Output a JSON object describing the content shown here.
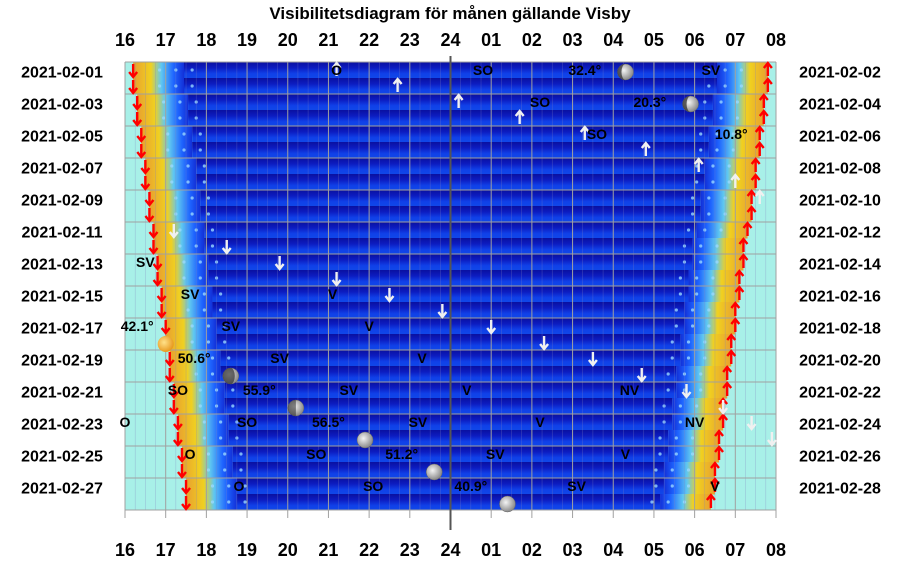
{
  "chart_data": {
    "type": "heatmap",
    "title": "Visibilitetsdiagram för månen gällande Visby",
    "x_hour_labels": [
      "16",
      "17",
      "18",
      "19",
      "20",
      "21",
      "22",
      "23",
      "24",
      "01",
      "02",
      "03",
      "04",
      "05",
      "06",
      "07",
      "08"
    ],
    "left_dates": [
      "2021-02-01",
      "2021-02-03",
      "2021-02-05",
      "2021-02-07",
      "2021-02-09",
      "2021-02-11",
      "2021-02-13",
      "2021-02-15",
      "2021-02-17",
      "2021-02-19",
      "2021-02-21",
      "2021-02-23",
      "2021-02-25",
      "2021-02-27"
    ],
    "right_dates": [
      "2021-02-02",
      "2021-02-04",
      "2021-02-06",
      "2021-02-08",
      "2021-02-10",
      "2021-02-12",
      "2021-02-14",
      "2021-02-16",
      "2021-02-18",
      "2021-02-20",
      "2021-02-22",
      "2021-02-24",
      "2021-02-26",
      "2021-02-28"
    ],
    "sunset_by_day": [
      16.2,
      16.2,
      16.3,
      16.3,
      16.4,
      16.4,
      16.5,
      16.5,
      16.6,
      16.6,
      16.7,
      16.7,
      16.8,
      16.8,
      16.9,
      16.9,
      17.0,
      17.0,
      17.1,
      17.1,
      17.2,
      17.2,
      17.3,
      17.3,
      17.4,
      17.4,
      17.5,
      17.5
    ],
    "sunrise_by_day": [
      31.8,
      31.8,
      31.7,
      31.7,
      31.6,
      31.6,
      31.5,
      31.5,
      31.4,
      31.4,
      31.3,
      31.2,
      31.2,
      31.1,
      31.1,
      31.0,
      31.0,
      30.9,
      30.9,
      30.8,
      30.8,
      30.7,
      30.7,
      30.6,
      30.6,
      30.5,
      30.5,
      30.4
    ],
    "moon_icons": [
      {
        "day": 1,
        "hour": 28.3,
        "phase": "waning gibbous"
      },
      {
        "day": 3,
        "hour": 29.9,
        "phase": "waning gibbous"
      },
      {
        "day": 18,
        "hour": 17.0,
        "phase": "waxing crescent"
      },
      {
        "day": 20,
        "hour": 18.6,
        "phase": "waxing crescent"
      },
      {
        "day": 22,
        "hour": 20.2,
        "phase": "first quarter"
      },
      {
        "day": 24,
        "hour": 21.9,
        "phase": "waxing gibbous"
      },
      {
        "day": 26,
        "hour": 23.6,
        "phase": "waxing gibbous"
      },
      {
        "day": 28,
        "hour": 25.4,
        "phase": "full"
      }
    ],
    "annotations": [
      {
        "day": 1,
        "hour": 21.2,
        "text": "O"
      },
      {
        "day": 1,
        "hour": 24.8,
        "text": "SO"
      },
      {
        "day": 1,
        "hour": 27.3,
        "text": "32.4°"
      },
      {
        "day": 1,
        "hour": 30.4,
        "text": "SV"
      },
      {
        "day": 3,
        "hour": 26.2,
        "text": "SO"
      },
      {
        "day": 3,
        "hour": 28.9,
        "text": "20.3°"
      },
      {
        "day": 5,
        "hour": 27.6,
        "text": "SO"
      },
      {
        "day": 5,
        "hour": 30.9,
        "text": "10.8°"
      },
      {
        "day": 13,
        "hour": 16.5,
        "text": "SV"
      },
      {
        "day": 15,
        "hour": 17.6,
        "text": "SV"
      },
      {
        "day": 15,
        "hour": 21.1,
        "text": "V"
      },
      {
        "day": 17,
        "hour": 16.3,
        "text": "42.1°"
      },
      {
        "day": 17,
        "hour": 18.6,
        "text": "SV"
      },
      {
        "day": 17,
        "hour": 22.0,
        "text": "V"
      },
      {
        "day": 19,
        "hour": 17.7,
        "text": "50.6°"
      },
      {
        "day": 19,
        "hour": 19.8,
        "text": "SV"
      },
      {
        "day": 19,
        "hour": 23.3,
        "text": "V"
      },
      {
        "day": 21,
        "hour": 17.3,
        "text": "SO"
      },
      {
        "day": 21,
        "hour": 19.3,
        "text": "55.9°"
      },
      {
        "day": 21,
        "hour": 21.5,
        "text": "SV"
      },
      {
        "day": 21,
        "hour": 24.4,
        "text": "V"
      },
      {
        "day": 21,
        "hour": 28.4,
        "text": "NV"
      },
      {
        "day": 23,
        "hour": 16.0,
        "text": "O"
      },
      {
        "day": 23,
        "hour": 19.0,
        "text": "SO"
      },
      {
        "day": 23,
        "hour": 21.0,
        "text": "56.5°"
      },
      {
        "day": 23,
        "hour": 23.2,
        "text": "SV"
      },
      {
        "day": 23,
        "hour": 26.2,
        "text": "V"
      },
      {
        "day": 23,
        "hour": 30.0,
        "text": "NV"
      },
      {
        "day": 25,
        "hour": 17.6,
        "text": "O"
      },
      {
        "day": 25,
        "hour": 20.7,
        "text": "SO"
      },
      {
        "day": 25,
        "hour": 22.8,
        "text": "51.2°"
      },
      {
        "day": 25,
        "hour": 25.1,
        "text": "SV"
      },
      {
        "day": 25,
        "hour": 28.3,
        "text": "V"
      },
      {
        "day": 27,
        "hour": 18.8,
        "text": "O"
      },
      {
        "day": 27,
        "hour": 22.1,
        "text": "SO"
      },
      {
        "day": 27,
        "hour": 24.5,
        "text": "40.9°"
      },
      {
        "day": 27,
        "hour": 27.1,
        "text": "SV"
      },
      {
        "day": 27,
        "hour": 30.5,
        "text": "V"
      }
    ],
    "moon_arrows": [
      {
        "day": 1,
        "hour": 21.2,
        "dir": "up"
      },
      {
        "day": 2,
        "hour": 22.7,
        "dir": "up"
      },
      {
        "day": 3,
        "hour": 24.2,
        "dir": "up"
      },
      {
        "day": 4,
        "hour": 25.7,
        "dir": "up"
      },
      {
        "day": 5,
        "hour": 27.3,
        "dir": "up"
      },
      {
        "day": 6,
        "hour": 28.8,
        "dir": "up"
      },
      {
        "day": 7,
        "hour": 30.1,
        "dir": "up"
      },
      {
        "day": 8,
        "hour": 31.0,
        "dir": "up"
      },
      {
        "day": 9,
        "hour": 31.6,
        "dir": "up"
      },
      {
        "day": 11,
        "hour": 17.2,
        "dir": "down"
      },
      {
        "day": 12,
        "hour": 18.5,
        "dir": "down"
      },
      {
        "day": 13,
        "hour": 19.8,
        "dir": "down"
      },
      {
        "day": 14,
        "hour": 21.2,
        "dir": "down"
      },
      {
        "day": 15,
        "hour": 22.5,
        "dir": "down"
      },
      {
        "day": 16,
        "hour": 23.8,
        "dir": "down"
      },
      {
        "day": 17,
        "hour": 25.0,
        "dir": "down"
      },
      {
        "day": 18,
        "hour": 26.3,
        "dir": "down"
      },
      {
        "day": 19,
        "hour": 27.5,
        "dir": "down"
      },
      {
        "day": 20,
        "hour": 28.7,
        "dir": "down"
      },
      {
        "day": 21,
        "hour": 29.8,
        "dir": "down"
      },
      {
        "day": 22,
        "hour": 30.7,
        "dir": "down"
      },
      {
        "day": 23,
        "hour": 31.4,
        "dir": "down"
      },
      {
        "day": 24,
        "hour": 31.9,
        "dir": "down"
      }
    ],
    "colors": {
      "night_deep": "#0a14b4",
      "night_mid": "#1e64ff",
      "twilight": "#f0c414",
      "twilight_orange": "#e8a030",
      "day": "#a8f0e8",
      "sun_arrow": "#ff0000",
      "moon_arrow": "#f0f0f0",
      "midnight_line": "#555555",
      "grid": "#a0a0a0"
    }
  }
}
